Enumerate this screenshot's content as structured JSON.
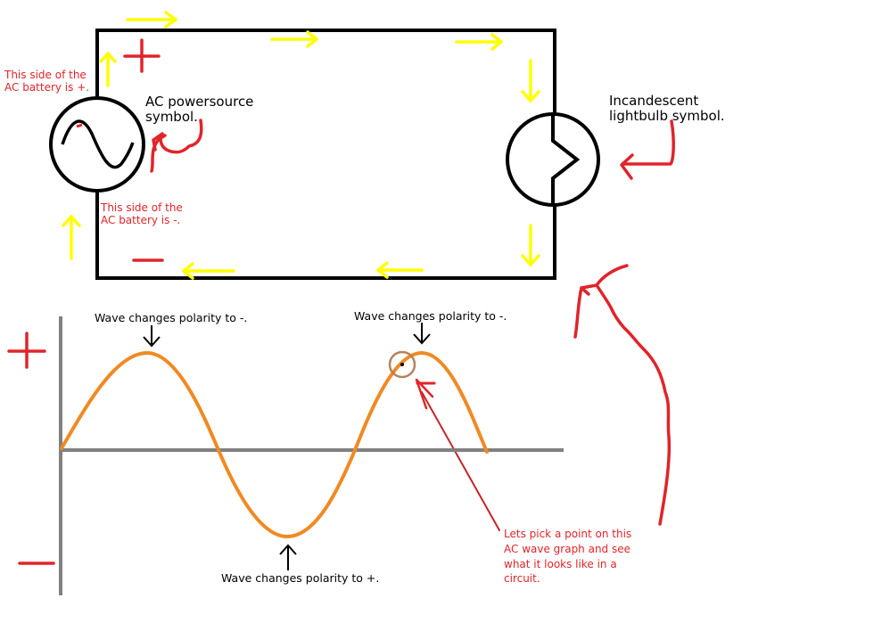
{
  "colors": {
    "wire": "#000000",
    "arrow": "#ffff00",
    "annotation": "#e0242a",
    "wave": "#f08a24",
    "axis": "#808080",
    "marker": "#b5825a"
  },
  "labels": {
    "ac_source": "AC powersource symbol.",
    "lightbulb": "Incandescent lightbulb symbol.",
    "positive_side": "This side of the AC battery is +.",
    "negative_side": "This side of the AC battery is -.",
    "peak1": "Wave changes polarity to -.",
    "peak2": "Wave changes polarity to -.",
    "trough": "Wave changes polarity to +.",
    "pick_point": "Lets pick a point on this AC wave graph and see what it looks like in a circuit."
  },
  "symbols": {
    "plus": "+",
    "minus": "-"
  },
  "icons": {
    "ac_source": "ac-source-icon",
    "lightbulb": "lightbulb-icon",
    "current_arrow": "arrow-icon"
  }
}
